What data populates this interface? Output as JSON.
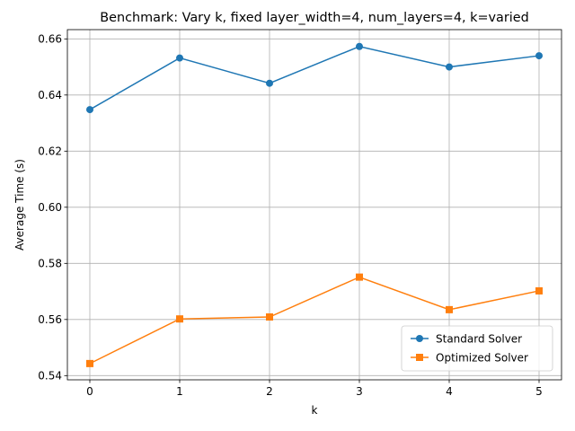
{
  "chart_data": {
    "type": "line",
    "title": "Benchmark: Vary k, fixed layer_width=4, num_layers=4, k=varied",
    "xlabel": "k",
    "ylabel": "Average Time (s)",
    "x": [
      0,
      1,
      2,
      3,
      4,
      5
    ],
    "xlim": [
      -0.25,
      5.25
    ],
    "ylim": [
      0.5385,
      0.6633
    ],
    "xticks": [
      0,
      1,
      2,
      3,
      4,
      5
    ],
    "xtick_labels": [
      "0",
      "1",
      "2",
      "3",
      "4",
      "5"
    ],
    "yticks": [
      0.54,
      0.56,
      0.58,
      0.6,
      0.62,
      0.64,
      0.66
    ],
    "ytick_labels": [
      "0.54",
      "0.56",
      "0.58",
      "0.60",
      "0.62",
      "0.64",
      "0.66"
    ],
    "grid": true,
    "legend_position": "lower right",
    "series": [
      {
        "name": "Standard Solver",
        "color": "#1f77b4",
        "marker": "circle",
        "values": [
          0.6348,
          0.6532,
          0.6442,
          0.6573,
          0.65,
          0.654
        ]
      },
      {
        "name": "Optimized Solver",
        "color": "#ff7f0e",
        "marker": "square",
        "values": [
          0.5443,
          0.5602,
          0.5609,
          0.5751,
          0.5635,
          0.5702
        ]
      }
    ]
  }
}
